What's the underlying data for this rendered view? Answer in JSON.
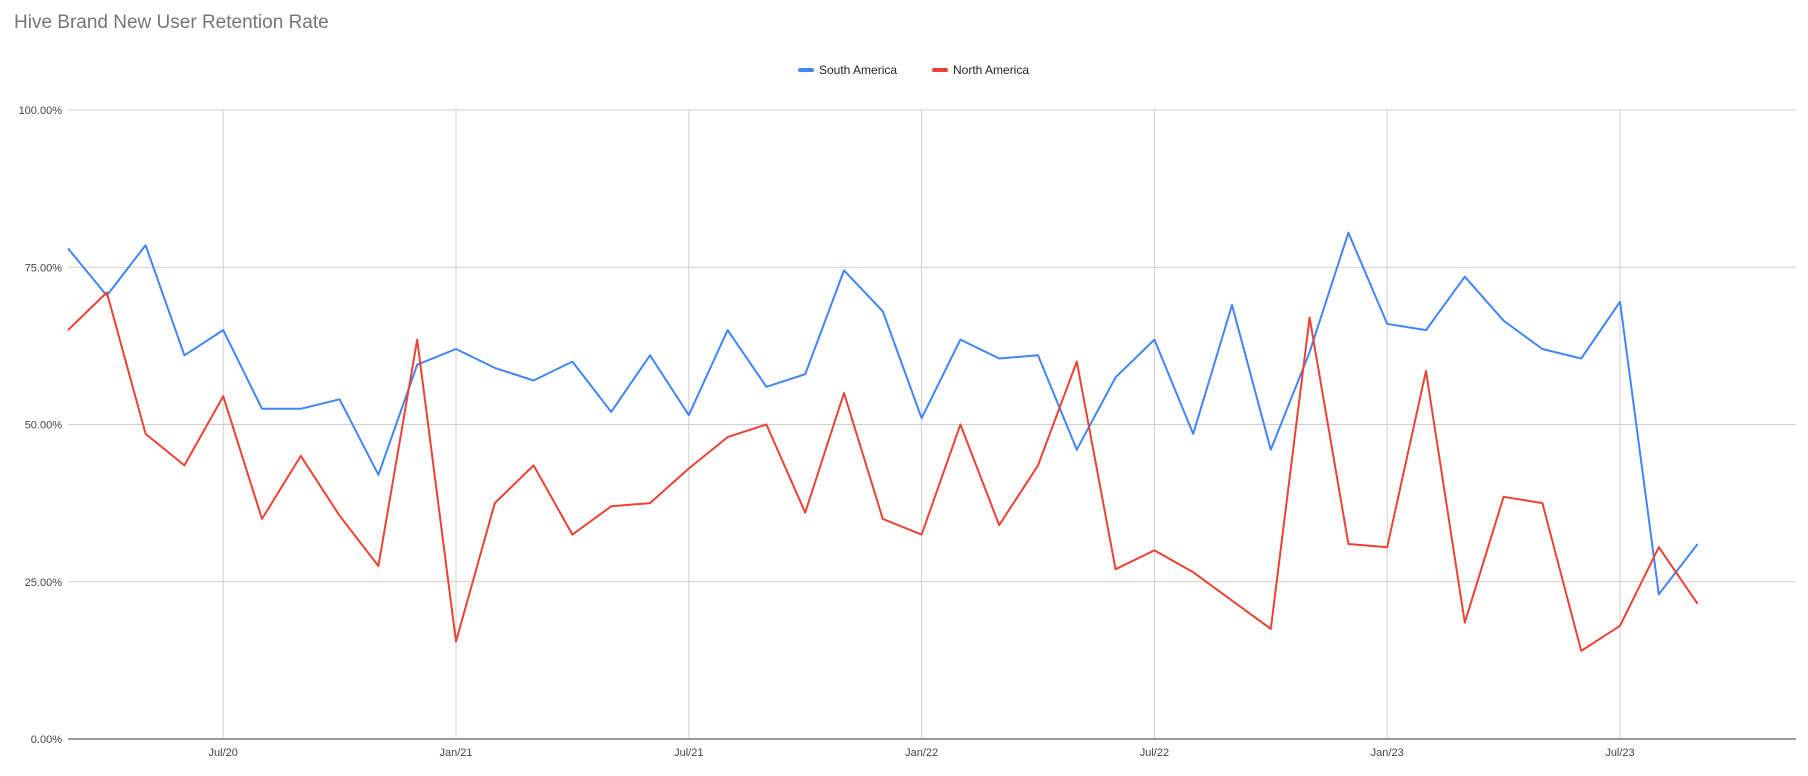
{
  "chart_data": {
    "type": "line",
    "title": "Hive Brand New User Retention Rate",
    "xlabel": "",
    "ylabel": "",
    "ylim": [
      0,
      100
    ],
    "y_ticks": [
      "0.00%",
      "25.00%",
      "50.00%",
      "75.00%",
      "100.00%"
    ],
    "x_ticks": [
      "Jul/20",
      "Jan/21",
      "Jul/21",
      "Jan/22",
      "Jul/22",
      "Jan/23",
      "Jul/23"
    ],
    "legend_position": "top-center",
    "grid": true,
    "x": [
      "2020-03",
      "2020-04",
      "2020-05",
      "2020-06",
      "2020-07",
      "2020-08",
      "2020-09",
      "2020-10",
      "2020-11",
      "2020-12",
      "2021-01",
      "2021-02",
      "2021-03",
      "2021-04",
      "2021-05",
      "2021-06",
      "2021-07",
      "2021-08",
      "2021-09",
      "2021-10",
      "2021-11",
      "2021-12",
      "2022-01",
      "2022-02",
      "2022-03",
      "2022-04",
      "2022-05",
      "2022-06",
      "2022-07",
      "2022-08",
      "2022-09",
      "2022-10",
      "2022-11",
      "2022-12",
      "2023-01",
      "2023-02",
      "2023-03",
      "2023-04",
      "2023-05",
      "2023-06",
      "2023-07",
      "2023-08",
      "2023-09"
    ],
    "series": [
      {
        "name": "South America",
        "color": "#4285f4",
        "values": [
          78.0,
          70.5,
          78.5,
          61.0,
          65.0,
          52.5,
          52.5,
          54.0,
          42.0,
          59.5,
          62.0,
          59.0,
          57.0,
          60.0,
          52.0,
          61.0,
          51.5,
          65.0,
          56.0,
          58.0,
          74.5,
          68.0,
          51.0,
          63.5,
          60.5,
          61.0,
          46.0,
          57.5,
          63.5,
          48.5,
          69.0,
          46.0,
          61.5,
          80.5,
          66.0,
          65.0,
          73.5,
          66.5,
          62.0,
          60.5,
          69.5,
          23.0,
          31.0
        ]
      },
      {
        "name": "North America",
        "color": "#ea4335",
        "values": [
          65.0,
          71.0,
          48.5,
          43.5,
          54.5,
          35.0,
          45.0,
          35.5,
          27.5,
          63.5,
          15.5,
          37.5,
          43.5,
          32.5,
          37.0,
          37.5,
          43.0,
          48.0,
          50.0,
          36.0,
          55.0,
          35.0,
          32.5,
          50.0,
          34.0,
          43.5,
          60.0,
          27.0,
          30.0,
          26.5,
          22.0,
          17.5,
          67.0,
          31.0,
          30.5,
          58.5,
          18.5,
          38.5,
          37.5,
          14.0,
          18.0,
          30.5,
          21.5
        ]
      }
    ]
  }
}
